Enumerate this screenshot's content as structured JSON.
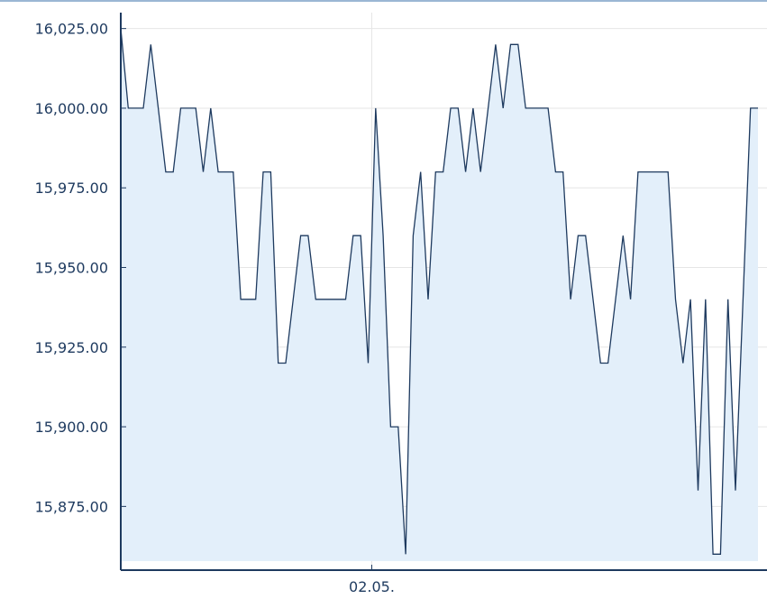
{
  "chart_data": {
    "type": "area",
    "title": "",
    "xlabel": "",
    "ylabel": "",
    "ylim": [
      15855,
      16030
    ],
    "y_ticks": [
      15875,
      15900,
      15925,
      15950,
      15975,
      16000,
      16025
    ],
    "y_tick_labels": [
      "15,875.00",
      "15,900.00",
      "15,925.00",
      "15,950.00",
      "15,975.00",
      "16,000.00",
      "16,025.00"
    ],
    "x_tick_labels": [
      {
        "label": "02.05.",
        "index": 33
      }
    ],
    "grid": {
      "horizontal": true,
      "vertical": true
    },
    "colors": {
      "line": "#1e3a5f",
      "fill": "#e3effa",
      "grid": "#e6e6e6",
      "axis": "#1e3a5f",
      "text": "#1e3a5f"
    },
    "series": [
      {
        "values": [
          16025,
          16000,
          16000,
          16000,
          16020,
          16000,
          15980,
          15980,
          16000,
          16000,
          16000,
          15980,
          16000,
          15980,
          15980,
          15980,
          15940,
          15940,
          15940,
          15980,
          15980,
          15920,
          15920,
          15940,
          15960,
          15960,
          15940,
          15940,
          15940,
          15940,
          15940,
          15960,
          15960,
          15920,
          16000,
          15960,
          15900,
          15900,
          15860,
          15960,
          15980,
          15940,
          15980,
          15980,
          16000,
          16000,
          15980,
          16000,
          15980,
          16000,
          16020,
          16000,
          16020,
          16020,
          16000,
          16000,
          16000,
          16000,
          15980,
          15980,
          15940,
          15960,
          15960,
          15940,
          15920,
          15920,
          15940,
          15960,
          15940,
          15980,
          15980,
          15980,
          15980,
          15980,
          15940,
          15920,
          15940,
          15880,
          15940,
          15860,
          15860,
          15940,
          15880,
          15940,
          16000,
          16000
        ]
      }
    ]
  }
}
